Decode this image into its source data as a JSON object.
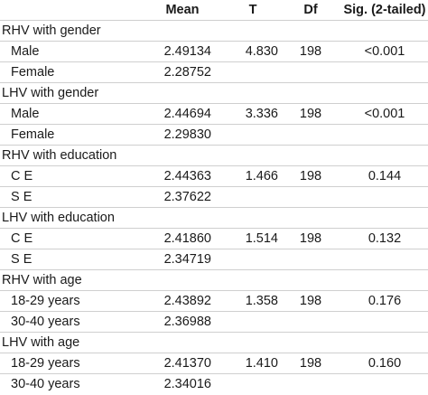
{
  "header": {
    "mean": "Mean",
    "t": "T",
    "df": "Df",
    "sig": "Sig. (2-tailed)"
  },
  "rows": [
    {
      "label": "RHV with gender",
      "sub": false,
      "mean": "",
      "t": "",
      "df": "",
      "sig": ""
    },
    {
      "label": "Male",
      "sub": true,
      "mean": "2.49134",
      "t": "4.830",
      "df": "198",
      "sig": "<0.001"
    },
    {
      "label": "Female",
      "sub": true,
      "mean": "2.28752",
      "t": "",
      "df": "",
      "sig": ""
    },
    {
      "label": "LHV with gender",
      "sub": false,
      "mean": "",
      "t": "",
      "df": "",
      "sig": ""
    },
    {
      "label": "Male",
      "sub": true,
      "mean": "2.44694",
      "t": "3.336",
      "df": "198",
      "sig": "<0.001"
    },
    {
      "label": "Female",
      "sub": true,
      "mean": "2.29830",
      "t": "",
      "df": "",
      "sig": ""
    },
    {
      "label": "RHV with education",
      "sub": false,
      "mean": "",
      "t": "",
      "df": "",
      "sig": ""
    },
    {
      "label": "C E",
      "sub": true,
      "mean": "2.44363",
      "t": "1.466",
      "df": "198",
      "sig": "0.144"
    },
    {
      "label": "S E",
      "sub": true,
      "mean": "2.37622",
      "t": "",
      "df": "",
      "sig": ""
    },
    {
      "label": "LHV with education",
      "sub": false,
      "mean": "",
      "t": "",
      "df": "",
      "sig": ""
    },
    {
      "label": "C E",
      "sub": true,
      "mean": "2.41860",
      "t": "1.514",
      "df": "198",
      "sig": "0.132"
    },
    {
      "label": "S E",
      "sub": true,
      "mean": "2.34719",
      "t": "",
      "df": "",
      "sig": ""
    },
    {
      "label": "RHV with age",
      "sub": false,
      "mean": "",
      "t": "",
      "df": "",
      "sig": ""
    },
    {
      "label": "18-29 years",
      "sub": true,
      "mean": "2.43892",
      "t": "1.358",
      "df": "198",
      "sig": "0.176"
    },
    {
      "label": "30-40 years",
      "sub": true,
      "mean": "2.36988",
      "t": "",
      "df": "",
      "sig": ""
    },
    {
      "label": "LHV with age",
      "sub": false,
      "mean": "",
      "t": "",
      "df": "",
      "sig": ""
    },
    {
      "label": "18-29 years",
      "sub": true,
      "mean": "2.41370",
      "t": "1.410",
      "df": "198",
      "sig": "0.160"
    },
    {
      "label": "30-40 years",
      "sub": true,
      "mean": "2.34016",
      "t": "",
      "df": "",
      "sig": ""
    }
  ]
}
